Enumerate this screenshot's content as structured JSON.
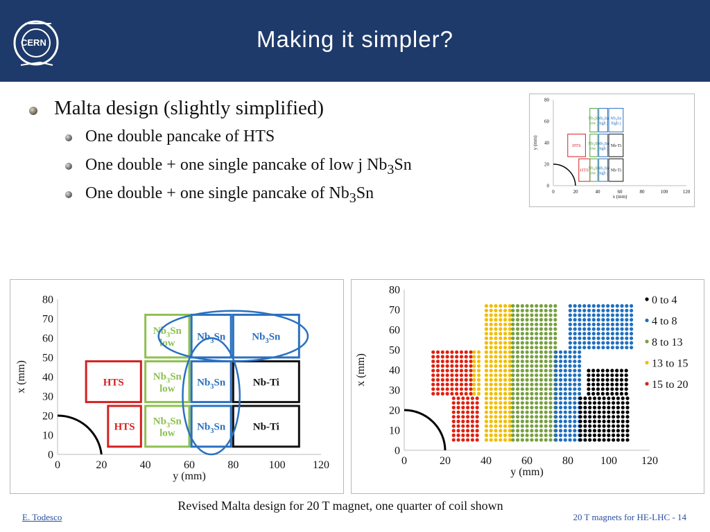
{
  "header": {
    "title": "Making it simpler?",
    "logo_text": "CERN"
  },
  "bullets": {
    "level1": "Malta design (slightly simplified)",
    "items": [
      {
        "text": "One double pancake of HTS"
      },
      {
        "pre": "One double + one single pancake of low j Nb",
        "sub": "3",
        "post": "Sn"
      },
      {
        "pre": "One double + one single pancake of Nb",
        "sub": "3",
        "post": "Sn"
      }
    ]
  },
  "chart_data": [
    {
      "type": "layout",
      "title": "",
      "xlabel": "x (mm)",
      "ylabel": "y (mm)",
      "xlim": [
        0,
        120
      ],
      "ylim": [
        0,
        80
      ],
      "xticks": [
        "0",
        "20",
        "40",
        "60",
        "80",
        "100",
        "120"
      ],
      "yticks": [
        "0",
        "20",
        "40",
        "60",
        "80"
      ],
      "blocks": [
        {
          "label": "HTS",
          "sub": "",
          "sub2": "",
          "color": "#d42020",
          "x": [
            13,
            29
          ],
          "y": [
            27,
            48
          ]
        },
        {
          "label": "HTS",
          "sub": "",
          "sub2": "",
          "color": "#d42020",
          "x": [
            23,
            33
          ],
          "y": [
            4,
            25
          ]
        },
        {
          "label": "Nb3Sn",
          "sub": "low j",
          "sub2": "",
          "color": "#4ea03a",
          "x": [
            33,
            40
          ],
          "y": [
            50,
            72
          ]
        },
        {
          "label": "Nb3Sn",
          "sub": "low j",
          "sub2": "",
          "color": "#4ea03a",
          "x": [
            33,
            40
          ],
          "y": [
            27,
            48
          ]
        },
        {
          "label": "Nb3Sn",
          "sub": "low j",
          "sub2": "",
          "color": "#4ea03a",
          "x": [
            33,
            40
          ],
          "y": [
            4,
            25
          ]
        },
        {
          "label": "Nb3Sn",
          "sub": "high j",
          "sub2": "",
          "color": "#2a70c0",
          "x": [
            41,
            49
          ],
          "y": [
            50,
            72
          ]
        },
        {
          "label": "Nb3Sn",
          "sub": "high j",
          "sub2": "",
          "color": "#2a70c0",
          "x": [
            41,
            49
          ],
          "y": [
            27,
            48
          ]
        },
        {
          "label": "Nb3Sn",
          "sub": "high j",
          "sub2": "",
          "color": "#2a70c0",
          "x": [
            41,
            49
          ],
          "y": [
            4,
            25
          ]
        },
        {
          "label": "Nb3Sn",
          "sub": "high j",
          "sub2": "",
          "color": "#2a70c0",
          "x": [
            50,
            63
          ],
          "y": [
            50,
            72
          ]
        },
        {
          "label": "Nb-Ti",
          "sub": "",
          "sub2": "",
          "color": "#111111",
          "x": [
            50,
            63
          ],
          "y": [
            27,
            48
          ]
        },
        {
          "label": "Nb-Ti",
          "sub": "",
          "sub2": "",
          "color": "#111111",
          "x": [
            50,
            63
          ],
          "y": [
            4,
            25
          ]
        }
      ]
    },
    {
      "type": "layout",
      "title": "",
      "xlabel": "y (mm)",
      "ylabel": "x (mm)",
      "xlim": [
        0,
        120
      ],
      "ylim": [
        0,
        80
      ],
      "xticks": [
        "0",
        "20",
        "40",
        "60",
        "80",
        "100",
        "120"
      ],
      "yticks": [
        "0",
        "10",
        "20",
        "30",
        "40",
        "50",
        "60",
        "70",
        "80"
      ],
      "blocks": [
        {
          "label": "HTS",
          "sub": "",
          "sub2": "",
          "color": "#d42020",
          "x": [
            13,
            38
          ],
          "y": [
            27,
            48
          ]
        },
        {
          "label": "HTS",
          "sub": "",
          "sub2": "",
          "color": "#d42020",
          "x": [
            23,
            38
          ],
          "y": [
            4,
            25
          ]
        },
        {
          "label": "Nb3Sn",
          "sub": "3",
          "sub2": "low",
          "color": "#8dc050",
          "x": [
            40,
            60
          ],
          "y": [
            50,
            72
          ]
        },
        {
          "label": "Nb3Sn",
          "sub": "3",
          "sub2": "low",
          "color": "#8dc050",
          "x": [
            40,
            60
          ],
          "y": [
            27,
            48
          ]
        },
        {
          "label": "Nb3Sn",
          "sub": "3",
          "sub2": "low",
          "color": "#8dc050",
          "x": [
            40,
            60
          ],
          "y": [
            4,
            25
          ]
        },
        {
          "label": "Nb3Sn",
          "sub": "3",
          "sub2": "",
          "color": "#2a70c0",
          "x": [
            61,
            79
          ],
          "y": [
            50,
            72
          ]
        },
        {
          "label": "Nb3Sn",
          "sub": "3",
          "sub2": "",
          "color": "#2a70c0",
          "x": [
            61,
            79
          ],
          "y": [
            27,
            48
          ]
        },
        {
          "label": "Nb3Sn",
          "sub": "3",
          "sub2": "",
          "color": "#2a70c0",
          "x": [
            61,
            79
          ],
          "y": [
            4,
            25
          ]
        },
        {
          "label": "Nb3Sn",
          "sub": "3",
          "sub2": "",
          "color": "#2a70c0",
          "x": [
            80,
            110
          ],
          "y": [
            50,
            72
          ]
        },
        {
          "label": "Nb-Ti",
          "sub": "",
          "sub2": "",
          "color": "#111111",
          "x": [
            80,
            110
          ],
          "y": [
            27,
            48
          ]
        },
        {
          "label": "Nb-Ti",
          "sub": "",
          "sub2": "",
          "color": "#111111",
          "x": [
            80,
            110
          ],
          "y": [
            4,
            25
          ]
        }
      ],
      "ellipses": [
        {
          "cx": 80,
          "cy": 61,
          "rx": 34,
          "ry": 13,
          "color": "#2a70c0"
        },
        {
          "cx": 70,
          "cy": 30,
          "rx": 13,
          "ry": 30,
          "color": "#2a70c0"
        }
      ]
    },
    {
      "type": "scatter",
      "title": "",
      "xlabel": "y (mm)",
      "ylabel": "x (mm)",
      "xlim": [
        0,
        120
      ],
      "ylim": [
        0,
        80
      ],
      "xticks": [
        "0",
        "20",
        "40",
        "60",
        "80",
        "100",
        "120"
      ],
      "yticks": [
        "0",
        "10",
        "20",
        "30",
        "40",
        "50",
        "60",
        "70",
        "80"
      ],
      "legend_position": "top-right",
      "series": [
        {
          "name": "0 to 4",
          "color": "#000000"
        },
        {
          "name": "4 to 8",
          "color": "#1f6fc0"
        },
        {
          "name": "8 to 13",
          "color": "#78a040"
        },
        {
          "name": "13 to 15",
          "color": "#f0be00"
        },
        {
          "name": "15 to 20",
          "color": "#e02010"
        }
      ],
      "regions": [
        {
          "x": [
            13,
            33
          ],
          "y": [
            27,
            48
          ],
          "series": "15 to 20"
        },
        {
          "x": [
            33,
            37
          ],
          "y": [
            27,
            48
          ],
          "series": "13 to 15"
        },
        {
          "x": [
            23,
            35
          ],
          "y": [
            4,
            25
          ],
          "series": "15 to 20"
        },
        {
          "x": [
            39,
            52
          ],
          "y": [
            4,
            72
          ],
          "series": "13 to 15"
        },
        {
          "x": [
            52,
            73
          ],
          "y": [
            4,
            72
          ],
          "series": "8 to 13"
        },
        {
          "x": [
            73,
            85
          ],
          "y": [
            4,
            48
          ],
          "series": "4 to 8"
        },
        {
          "x": [
            85,
            110
          ],
          "y": [
            4,
            27
          ],
          "series": "0 to 4"
        },
        {
          "x": [
            89,
            108
          ],
          "y": [
            27,
            40
          ],
          "series": "0 to 4"
        },
        {
          "x": [
            80,
            110
          ],
          "y": [
            50,
            72
          ],
          "series": "4 to 8"
        }
      ]
    }
  ],
  "caption": "Revised Malta design for 20 T magnet, one quarter of coil shown",
  "footer": {
    "author": "E. Todesco",
    "page": "20 T magnets for HE-LHC - 14"
  }
}
